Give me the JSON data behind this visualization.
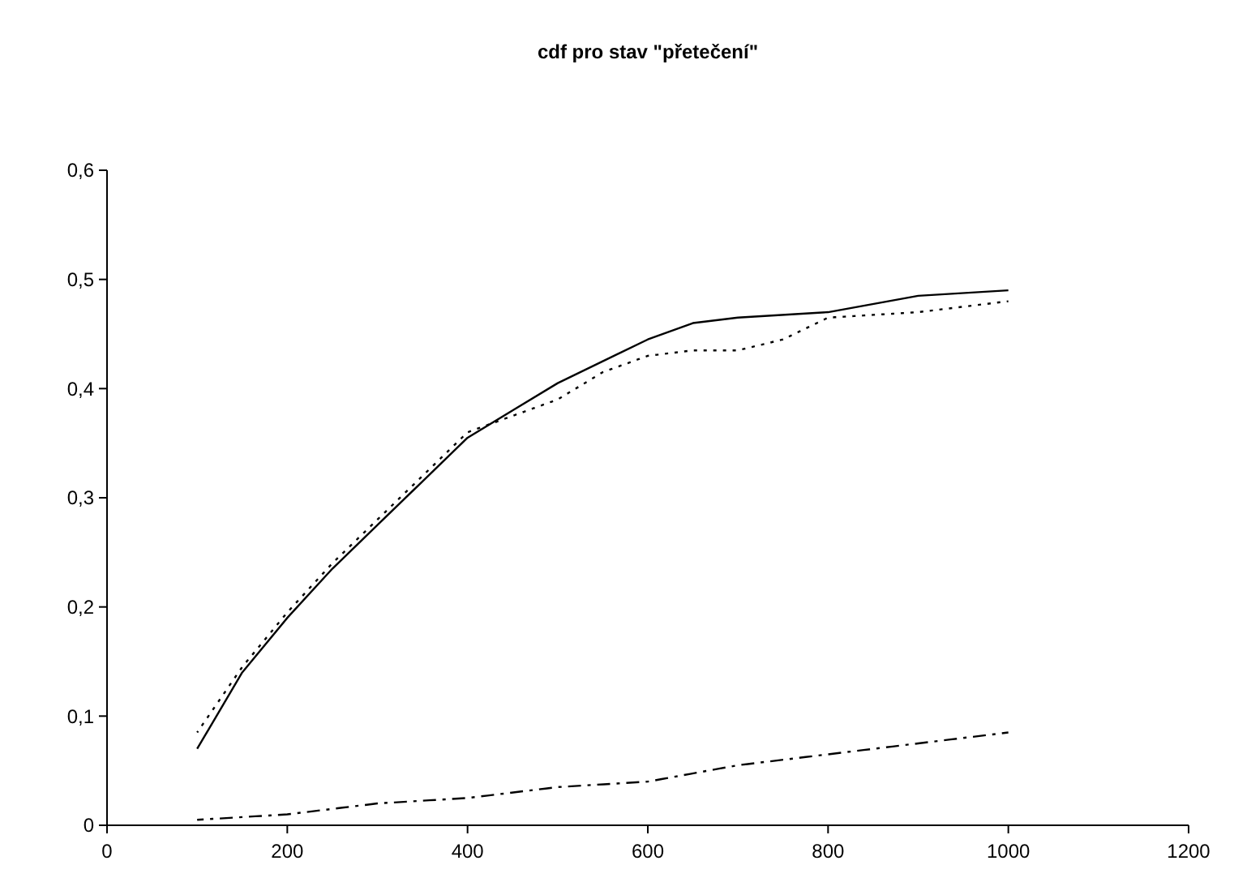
{
  "chart_data": {
    "type": "line",
    "title": "cdf pro stav \"přetečení\"",
    "xlim": [
      0,
      1200
    ],
    "xticks": [
      0,
      200,
      400,
      600,
      800,
      1000,
      1200
    ],
    "ylim": [
      0,
      0.6
    ],
    "yticks": [
      0,
      {
        "value": 0.1,
        "label": "0,1"
      },
      {
        "value": 0.2,
        "label": "0,2"
      },
      {
        "value": 0.3,
        "label": "0,3"
      },
      {
        "value": 0.4,
        "label": "0,4"
      },
      {
        "value": 0.5,
        "label": "0,5"
      },
      {
        "value": 0.6,
        "label": "0,6"
      }
    ],
    "grid": false,
    "marker": "none",
    "series": [
      {
        "color": "#000000",
        "line_style": "solid",
        "x": [
          100,
          150,
          200,
          250,
          300,
          350,
          400,
          450,
          500,
          550,
          600,
          650,
          700,
          800,
          900,
          1000
        ],
        "values": [
          0.07,
          0.14,
          0.19,
          0.235,
          0.275,
          0.315,
          0.355,
          0.38,
          0.405,
          0.425,
          0.445,
          0.46,
          0.465,
          0.47,
          0.485,
          0.49
        ]
      },
      {
        "color": "#000000",
        "line_style": "dotted",
        "x": [
          100,
          150,
          200,
          250,
          300,
          350,
          400,
          450,
          500,
          550,
          600,
          650,
          700,
          750,
          800,
          900,
          1000
        ],
        "values": [
          0.085,
          0.145,
          0.195,
          0.24,
          0.28,
          0.32,
          0.36,
          0.375,
          0.39,
          0.415,
          0.43,
          0.435,
          0.435,
          0.445,
          0.465,
          0.47,
          0.48
        ]
      },
      {
        "color": "#000000",
        "line_style": "dashed",
        "x": [
          100,
          200,
          300,
          400,
          500,
          600,
          700,
          800,
          900,
          950,
          1000
        ],
        "values": [
          0.005,
          0.01,
          0.02,
          0.025,
          0.035,
          0.04,
          0.055,
          0.065,
          0.075,
          0.08,
          0.085
        ]
      }
    ]
  }
}
